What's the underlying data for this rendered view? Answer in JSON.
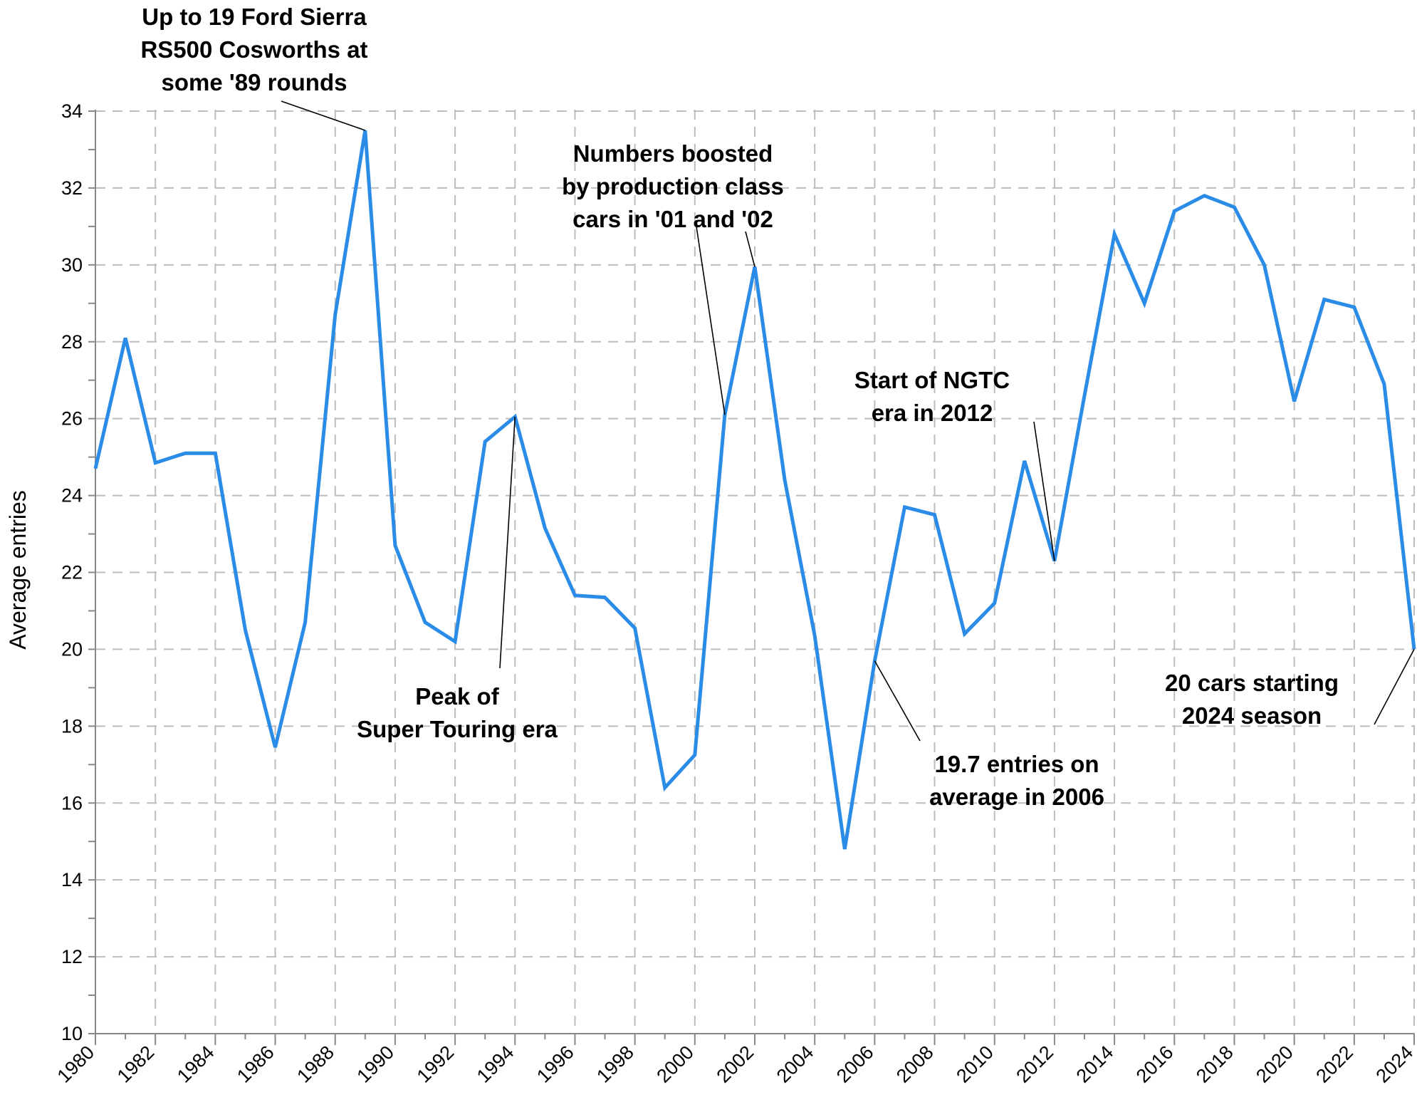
{
  "chart_data": {
    "type": "line",
    "title": "",
    "xlabel": "",
    "ylabel": "Average entries",
    "xlim": [
      1980,
      2024
    ],
    "ylim": [
      10,
      34
    ],
    "y_ticks": [
      10,
      12,
      14,
      16,
      18,
      20,
      22,
      24,
      26,
      28,
      30,
      32,
      34
    ],
    "x_ticks": [
      1980,
      1982,
      1984,
      1986,
      1988,
      1990,
      1992,
      1994,
      1996,
      1998,
      2000,
      2002,
      2004,
      2006,
      2008,
      2010,
      2012,
      2014,
      2016,
      2018,
      2020,
      2022,
      2024
    ],
    "grid": true,
    "line_color": "#2b8ce8",
    "x": [
      1980,
      1981,
      1982,
      1983,
      1984,
      1985,
      1986,
      1987,
      1988,
      1989,
      1990,
      1991,
      1992,
      1993,
      1994,
      1995,
      1996,
      1997,
      1998,
      1999,
      2000,
      2001,
      2002,
      2003,
      2004,
      2005,
      2006,
      2007,
      2008,
      2009,
      2010,
      2011,
      2012,
      2013,
      2014,
      2015,
      2016,
      2017,
      2018,
      2019,
      2020,
      2021,
      2022,
      2023,
      2024
    ],
    "values": [
      24.7,
      28.1,
      24.85,
      25.1,
      25.1,
      20.5,
      17.45,
      20.7,
      28.7,
      33.5,
      22.7,
      20.7,
      20.2,
      25.4,
      26.05,
      23.15,
      21.4,
      21.35,
      20.55,
      16.4,
      17.25,
      26.1,
      29.95,
      24.4,
      20.35,
      14.8,
      19.7,
      23.7,
      23.5,
      20.4,
      21.2,
      24.9,
      22.3,
      26.6,
      30.8,
      29.0,
      31.4,
      31.8,
      31.5,
      30.0,
      26.45,
      29.1,
      28.9,
      26.9,
      20.0
    ],
    "annotations": [
      {
        "lines": [
          "Up to 19 Ford Sierra",
          "RS500 Cosworths at",
          "some '89 rounds"
        ],
        "target_year": 1989
      },
      {
        "lines": [
          "Numbers boosted",
          "by production class",
          "cars in '01 and '02"
        ],
        "target_years": [
          2001,
          2002
        ]
      },
      {
        "lines": [
          "Peak of",
          "Super Touring era"
        ],
        "target_year": 1994
      },
      {
        "lines": [
          "Start of NGTC",
          "era in 2012"
        ],
        "target_year": 2012
      },
      {
        "lines": [
          "19.7 entries on",
          "average in 2006"
        ],
        "target_year": 2006
      },
      {
        "lines": [
          "20 cars starting",
          "2024 season"
        ],
        "target_year": 2024
      }
    ]
  }
}
